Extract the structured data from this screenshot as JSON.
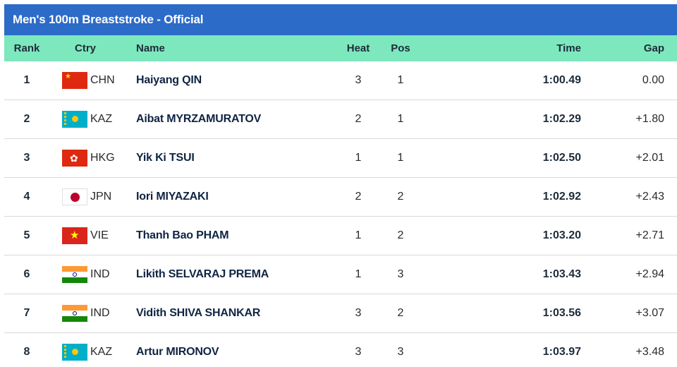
{
  "title": "Men's 100m Breaststroke  -  Official",
  "columns": {
    "rank": "Rank",
    "ctry": "Ctry",
    "name": "Name",
    "heat": "Heat",
    "pos": "Pos",
    "time": "Time",
    "gap": "Gap"
  },
  "colors": {
    "title_bar": "#2c6bc8",
    "header_row": "#7de8bd"
  },
  "rows": [
    {
      "rank": "1",
      "flag": "china-flag-icon",
      "ctry": "CHN",
      "name": "Haiyang QIN",
      "heat": "3",
      "pos": "1",
      "time": "1:00.49",
      "gap": "0.00"
    },
    {
      "rank": "2",
      "flag": "kazakhstan-flag-icon",
      "ctry": "KAZ",
      "name": "Aibat MYRZAMURATOV",
      "heat": "2",
      "pos": "1",
      "time": "1:02.29",
      "gap": "+1.80"
    },
    {
      "rank": "3",
      "flag": "hong-kong-flag-icon",
      "ctry": "HKG",
      "name": "Yik Ki TSUI",
      "heat": "1",
      "pos": "1",
      "time": "1:02.50",
      "gap": "+2.01"
    },
    {
      "rank": "4",
      "flag": "japan-flag-icon",
      "ctry": "JPN",
      "name": "Iori MIYAZAKI",
      "heat": "2",
      "pos": "2",
      "time": "1:02.92",
      "gap": "+2.43"
    },
    {
      "rank": "5",
      "flag": "vietnam-flag-icon",
      "ctry": "VIE",
      "name": "Thanh Bao PHAM",
      "heat": "1",
      "pos": "2",
      "time": "1:03.20",
      "gap": "+2.71"
    },
    {
      "rank": "6",
      "flag": "india-flag-icon",
      "ctry": "IND",
      "name": "Likith SELVARAJ PREMA",
      "heat": "1",
      "pos": "3",
      "time": "1:03.43",
      "gap": "+2.94"
    },
    {
      "rank": "7",
      "flag": "india-flag-icon",
      "ctry": "IND",
      "name": "Vidith SHIVA SHANKAR",
      "heat": "3",
      "pos": "2",
      "time": "1:03.56",
      "gap": "+3.07"
    },
    {
      "rank": "8",
      "flag": "kazakhstan-flag-icon",
      "ctry": "KAZ",
      "name": "Artur MIRONOV",
      "heat": "3",
      "pos": "3",
      "time": "1:03.97",
      "gap": "+3.48"
    }
  ]
}
